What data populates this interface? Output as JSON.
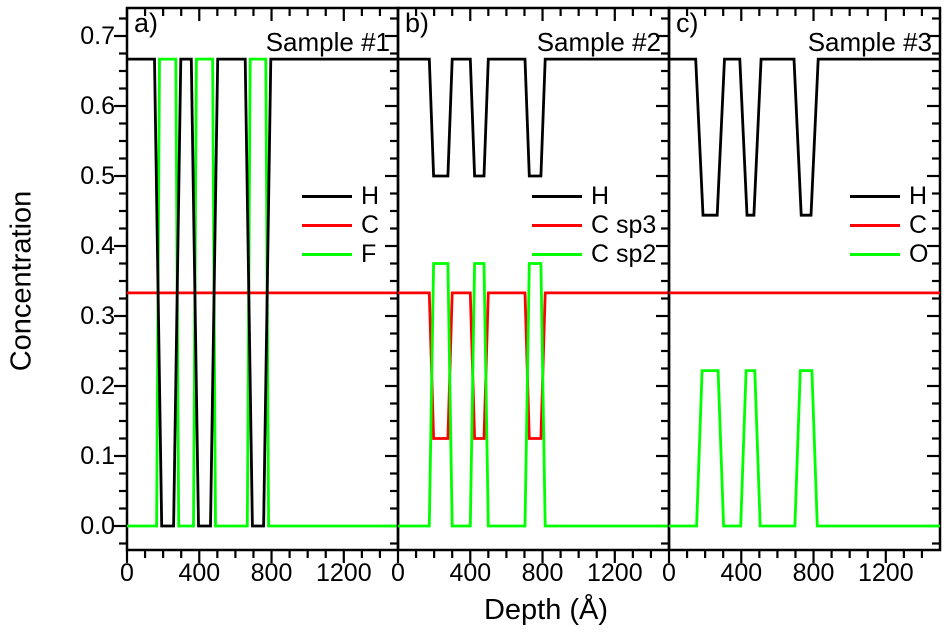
{
  "figure": {
    "y_axis_title": "Concentration",
    "x_axis_title": "Depth (Å)"
  },
  "chart_data": {
    "type": "line",
    "xlabel": "Depth (Å)",
    "ylabel": "Concentration",
    "xlim": [
      0,
      1500
    ],
    "ylim": [
      -0.035,
      0.745
    ],
    "grid": false,
    "x_major_ticks": [
      0,
      400,
      800,
      1200
    ],
    "x_tick_labels": [
      "0",
      "400",
      "800",
      "1200"
    ],
    "x_minor_step": 100,
    "y_major_ticks": [
      0.0,
      0.1,
      0.2,
      0.3,
      0.4,
      0.5,
      0.6,
      0.7
    ],
    "y_tick_labels": [
      "0.0",
      "0.1",
      "0.2",
      "0.3",
      "0.4",
      "0.5",
      "0.6",
      "0.7"
    ],
    "y_minor_step": 0.025,
    "axis_color": "#000000",
    "panels": [
      {
        "label": "a)",
        "title": "Sample #1",
        "legend": [
          {
            "label": "H",
            "color": "#000000"
          },
          {
            "label": "C",
            "color": "#ff0000"
          },
          {
            "label": "F",
            "color": "#00ff00"
          }
        ],
        "series": [
          {
            "name": "C",
            "color": "#ff0000",
            "points": [
              [
                0,
                0.333
              ],
              [
                1500,
                0.333
              ]
            ]
          },
          {
            "name": "F",
            "color": "#00ff00",
            "points": [
              [
                0,
                0
              ],
              [
                164,
                0
              ],
              [
                180,
                0.667
              ],
              [
                270,
                0.667
              ],
              [
                286,
                0
              ],
              [
                368,
                0
              ],
              [
                384,
                0.667
              ],
              [
                474,
                0.667
              ],
              [
                490,
                0
              ],
              [
                666,
                0
              ],
              [
                682,
                0.667
              ],
              [
                768,
                0.667
              ],
              [
                784,
                0
              ],
              [
                1500,
                0
              ]
            ]
          },
          {
            "name": "H",
            "color": "#000000",
            "points": [
              [
                0,
                0.667
              ],
              [
                152,
                0.667
              ],
              [
                192,
                0
              ],
              [
                258,
                0
              ],
              [
                298,
                0.667
              ],
              [
                356,
                0.667
              ],
              [
                396,
                0
              ],
              [
                462,
                0
              ],
              [
                502,
                0.667
              ],
              [
                654,
                0.667
              ],
              [
                694,
                0
              ],
              [
                756,
                0
              ],
              [
                796,
                0.667
              ],
              [
                1500,
                0.667
              ]
            ]
          }
        ]
      },
      {
        "label": "b)",
        "title": "Sample #2",
        "legend": [
          {
            "label": "H",
            "color": "#000000"
          },
          {
            "label": "C sp3",
            "color": "#ff0000"
          },
          {
            "label": "C sp2",
            "color": "#00ff00"
          }
        ],
        "series": [
          {
            "name": "C sp3",
            "color": "#ff0000",
            "points": [
              [
                0,
                0.333
              ],
              [
                173,
                0.333
              ],
              [
                197,
                0.125
              ],
              [
                276,
                0.125
              ],
              [
                300,
                0.333
              ],
              [
                400,
                0.333
              ],
              [
                424,
                0.125
              ],
              [
                476,
                0.125
              ],
              [
                500,
                0.333
              ],
              [
                703,
                0.333
              ],
              [
                727,
                0.125
              ],
              [
                791,
                0.125
              ],
              [
                815,
                0.333
              ],
              [
                1500,
                0.333
              ]
            ]
          },
          {
            "name": "C sp2",
            "color": "#00ff00",
            "points": [
              [
                0,
                0
              ],
              [
                173,
                0
              ],
              [
                197,
                0.375
              ],
              [
                276,
                0.375
              ],
              [
                300,
                0
              ],
              [
                400,
                0
              ],
              [
                424,
                0.375
              ],
              [
                476,
                0.375
              ],
              [
                500,
                0
              ],
              [
                703,
                0
              ],
              [
                727,
                0.375
              ],
              [
                791,
                0.375
              ],
              [
                815,
                0
              ],
              [
                1500,
                0
              ]
            ]
          },
          {
            "name": "H",
            "color": "#000000",
            "points": [
              [
                0,
                0.667
              ],
              [
                173,
                0.667
              ],
              [
                197,
                0.5
              ],
              [
                276,
                0.5
              ],
              [
                300,
                0.667
              ],
              [
                400,
                0.667
              ],
              [
                424,
                0.5
              ],
              [
                476,
                0.5
              ],
              [
                500,
                0.667
              ],
              [
                703,
                0.667
              ],
              [
                727,
                0.5
              ],
              [
                791,
                0.5
              ],
              [
                815,
                0.667
              ],
              [
                1500,
                0.667
              ]
            ]
          }
        ]
      },
      {
        "label": "c)",
        "title": "Sample #3",
        "legend": [
          {
            "label": "H",
            "color": "#000000"
          },
          {
            "label": "C",
            "color": "#ff0000"
          },
          {
            "label": "O",
            "color": "#00ff00"
          }
        ],
        "series": [
          {
            "name": "C",
            "color": "#ff0000",
            "points": [
              [
                0,
                0.333
              ],
              [
                1500,
                0.333
              ]
            ]
          },
          {
            "name": "O",
            "color": "#00ff00",
            "points": [
              [
                0,
                0
              ],
              [
                153,
                0
              ],
              [
                183,
                0.222
              ],
              [
                272,
                0.222
              ],
              [
                302,
                0
              ],
              [
                397,
                0
              ],
              [
                427,
                0.222
              ],
              [
                475,
                0.222
              ],
              [
                505,
                0
              ],
              [
                697,
                0
              ],
              [
                727,
                0.222
              ],
              [
                791,
                0.222
              ],
              [
                821,
                0
              ],
              [
                1500,
                0
              ]
            ]
          },
          {
            "name": "H",
            "color": "#000000",
            "points": [
              [
                0,
                0.667
              ],
              [
                148,
                0.667
              ],
              [
                188,
                0.444
              ],
              [
                267,
                0.444
              ],
              [
                307,
                0.667
              ],
              [
                392,
                0.667
              ],
              [
                432,
                0.444
              ],
              [
                470,
                0.444
              ],
              [
                510,
                0.667
              ],
              [
                692,
                0.667
              ],
              [
                732,
                0.444
              ],
              [
                786,
                0.444
              ],
              [
                826,
                0.667
              ],
              [
                1500,
                0.667
              ]
            ]
          }
        ]
      }
    ]
  }
}
